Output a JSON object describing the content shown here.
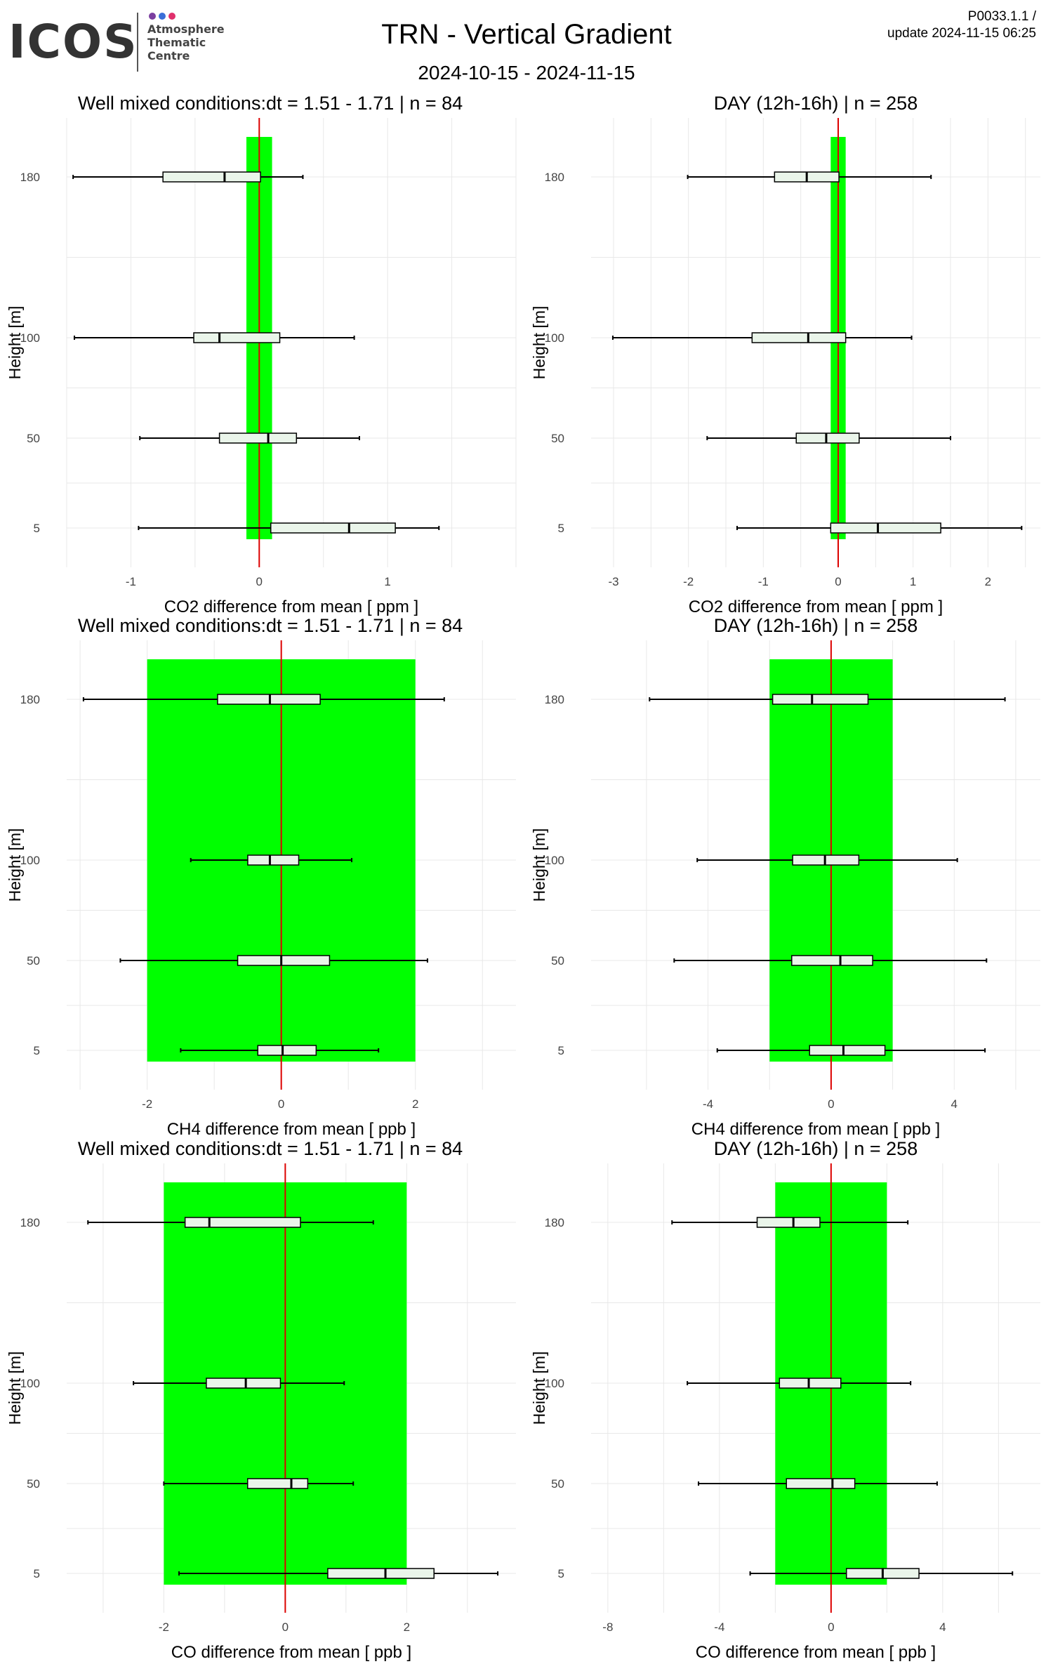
{
  "header": {
    "logo_wordmark": "ICOS",
    "logo_lines": [
      "Atmosphere",
      "Thematic",
      "Centre"
    ],
    "logo_dot_colors": [
      "#7b3fa0",
      "#3a6fd8",
      "#e0306c"
    ],
    "title": "TRN - Vertical Gradient",
    "date_range": "2024-10-15 - 2024-11-15",
    "version": "P0033.1.1 /",
    "update": "update  2024-11-15 06:25"
  },
  "colors": {
    "band": "#00ff00",
    "zero_line": "#dd0000",
    "box_fill": "#eaf5ea",
    "grid": "#e8e8e8",
    "whisker": "#000000"
  },
  "chart_data": [
    {
      "type": "boxplot-horizontal",
      "title": "Well mixed conditions:dt = 1.51 - 1.71 | n = 84",
      "xlabel": "CO2  difference from mean [ ppm ]",
      "ylabel": "Height [m]",
      "xlim": [
        -1.5,
        2.0
      ],
      "xticks": [
        -1,
        0,
        1
      ],
      "tolerance_band": [
        -0.1,
        0.1
      ],
      "categories": [
        "180",
        "100",
        "50",
        "5"
      ],
      "boxes": [
        {
          "height": "180",
          "whisker_low": -1.45,
          "q1": -0.75,
          "median": -0.27,
          "q3": 0.01,
          "whisker_high": 0.34
        },
        {
          "height": "100",
          "whisker_low": -1.44,
          "q1": -0.51,
          "median": -0.31,
          "q3": 0.16,
          "whisker_high": 0.74
        },
        {
          "height": "50",
          "whisker_low": -0.93,
          "q1": -0.31,
          "median": 0.07,
          "q3": 0.29,
          "whisker_high": 0.78
        },
        {
          "height": "5",
          "whisker_low": -0.94,
          "q1": 0.09,
          "median": 0.7,
          "q3": 1.06,
          "whisker_high": 1.4
        }
      ]
    },
    {
      "type": "boxplot-horizontal",
      "title": "DAY (12h-16h) | n = 258",
      "xlabel": "CO2  difference from mean [ ppm ]",
      "ylabel": "Height [m]",
      "xlim": [
        -3.3,
        2.7
      ],
      "xticks": [
        -3,
        -2,
        -1,
        0,
        1,
        2
      ],
      "tolerance_band": [
        -0.1,
        0.1
      ],
      "categories": [
        "180",
        "100",
        "50",
        "5"
      ],
      "boxes": [
        {
          "height": "180",
          "whisker_low": -2.01,
          "q1": -0.85,
          "median": -0.42,
          "q3": 0.01,
          "whisker_high": 1.24
        },
        {
          "height": "100",
          "whisker_low": -3.01,
          "q1": -1.15,
          "median": -0.4,
          "q3": 0.1,
          "whisker_high": 0.98
        },
        {
          "height": "50",
          "whisker_low": -1.75,
          "q1": -0.56,
          "median": -0.16,
          "q3": 0.28,
          "whisker_high": 1.5
        },
        {
          "height": "5",
          "whisker_low": -1.35,
          "q1": -0.1,
          "median": 0.53,
          "q3": 1.37,
          "whisker_high": 2.45
        }
      ]
    },
    {
      "type": "boxplot-horizontal",
      "title": "Well mixed conditions:dt = 1.51 - 1.71 | n = 84",
      "xlabel": "CH4  difference from mean [ ppb ]",
      "ylabel": "Height [m]",
      "xlim": [
        -3.2,
        3.5
      ],
      "xticks": [
        -2,
        0,
        2
      ],
      "tolerance_band": [
        -2,
        2
      ],
      "categories": [
        "180",
        "100",
        "50",
        "5"
      ],
      "boxes": [
        {
          "height": "180",
          "whisker_low": -2.95,
          "q1": -0.95,
          "median": -0.17,
          "q3": 0.58,
          "whisker_high": 2.43
        },
        {
          "height": "100",
          "whisker_low": -1.35,
          "q1": -0.5,
          "median": -0.17,
          "q3": 0.26,
          "whisker_high": 1.05
        },
        {
          "height": "50",
          "whisker_low": -2.4,
          "q1": -0.65,
          "median": 0.0,
          "q3": 0.72,
          "whisker_high": 2.18
        },
        {
          "height": "5",
          "whisker_low": -1.5,
          "q1": -0.35,
          "median": 0.02,
          "q3": 0.52,
          "whisker_high": 1.45
        }
      ]
    },
    {
      "type": "boxplot-horizontal",
      "title": "DAY (12h-16h) | n = 258",
      "xlabel": "CH4  difference from mean [ ppb ]",
      "ylabel": "Height [m]",
      "xlim": [
        -7.8,
        6.8
      ],
      "xticks": [
        -4,
        0,
        4
      ],
      "tolerance_band": [
        -2,
        2
      ],
      "categories": [
        "180",
        "100",
        "50",
        "5"
      ],
      "boxes": [
        {
          "height": "180",
          "whisker_low": -5.9,
          "q1": -1.9,
          "median": -0.62,
          "q3": 1.2,
          "whisker_high": 5.65
        },
        {
          "height": "100",
          "whisker_low": -4.35,
          "q1": -1.25,
          "median": -0.2,
          "q3": 0.9,
          "whisker_high": 4.1
        },
        {
          "height": "50",
          "whisker_low": -5.1,
          "q1": -1.28,
          "median": 0.3,
          "q3": 1.35,
          "whisker_high": 5.05
        },
        {
          "height": "5",
          "whisker_low": -3.7,
          "q1": -0.7,
          "median": 0.4,
          "q3": 1.75,
          "whisker_high": 5.0
        }
      ]
    },
    {
      "type": "boxplot-horizontal",
      "title": "Well mixed conditions:dt = 1.51 - 1.71 | n = 84",
      "xlabel": "CO  difference from mean [ ppb ]",
      "ylabel": "Height [m]",
      "xlim": [
        -3.6,
        3.8
      ],
      "xticks": [
        -2,
        0,
        2
      ],
      "tolerance_band": [
        -2,
        2
      ],
      "categories": [
        "180",
        "100",
        "50",
        "5"
      ],
      "boxes": [
        {
          "height": "180",
          "whisker_low": -3.25,
          "q1": -1.65,
          "median": -1.25,
          "q3": 0.25,
          "whisker_high": 1.45
        },
        {
          "height": "100",
          "whisker_low": -2.5,
          "q1": -1.3,
          "median": -0.65,
          "q3": -0.08,
          "whisker_high": 0.97
        },
        {
          "height": "50",
          "whisker_low": -2.0,
          "q1": -0.62,
          "median": 0.1,
          "q3": 0.37,
          "whisker_high": 1.12
        },
        {
          "height": "5",
          "whisker_low": -1.75,
          "q1": 0.7,
          "median": 1.65,
          "q3": 2.45,
          "whisker_high": 3.5
        }
      ]
    },
    {
      "type": "boxplot-horizontal",
      "title": "DAY (12h-16h) | n = 258",
      "xlabel": "CO  difference from mean [ ppb ]",
      "ylabel": "Height [m]",
      "xlim": [
        -8.6,
        7.5
      ],
      "xticks": [
        -8,
        -4,
        0,
        4
      ],
      "tolerance_band": [
        -2,
        2
      ],
      "categories": [
        "180",
        "100",
        "50",
        "5"
      ],
      "boxes": [
        {
          "height": "180",
          "whisker_low": -5.7,
          "q1": -2.65,
          "median": -1.35,
          "q3": -0.4,
          "whisker_high": 2.75
        },
        {
          "height": "100",
          "whisker_low": -5.15,
          "q1": -1.85,
          "median": -0.8,
          "q3": 0.35,
          "whisker_high": 2.85
        },
        {
          "height": "50",
          "whisker_low": -4.75,
          "q1": -1.6,
          "median": 0.05,
          "q3": 0.85,
          "whisker_high": 3.8
        },
        {
          "height": "5",
          "whisker_low": -2.9,
          "q1": 0.55,
          "median": 1.85,
          "q3": 3.15,
          "whisker_high": 6.5
        }
      ]
    }
  ]
}
